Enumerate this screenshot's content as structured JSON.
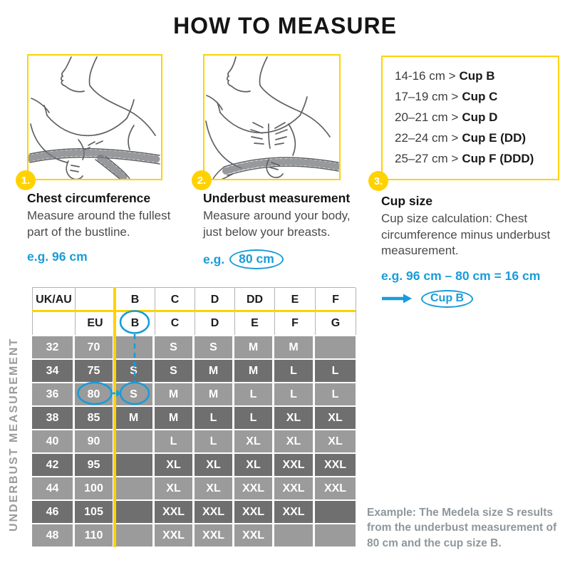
{
  "title": "HOW TO MEASURE",
  "colors": {
    "accent_yellow": "#FFD200",
    "accent_blue": "#189CD9",
    "row_light": "#9B9B9B",
    "row_dark": "#6F6F6F",
    "footnote_gray": "#8E979D"
  },
  "steps": [
    {
      "number": "1.",
      "heading": "Chest circumference",
      "body": "Measure around the fullest part of the bustline.",
      "example": "e.g. 96 cm"
    },
    {
      "number": "2.",
      "heading": "Underbust measurement",
      "body": "Measure around your body, just below your breasts.",
      "example_prefix": "e.g.",
      "example_circled": "80 cm"
    },
    {
      "number": "3.",
      "heading": "Cup size",
      "body": "Cup size calculation: Chest circumference minus underbust measurement.",
      "example": "e.g. 96 cm – 80 cm = 16 cm",
      "result_circled": "Cup B"
    }
  ],
  "cup_chart": {
    "lines": [
      {
        "range": "14-16 cm >",
        "cup": "Cup B"
      },
      {
        "range": "17–19 cm >",
        "cup": "Cup C"
      },
      {
        "range": "20–21 cm >",
        "cup": "Cup D"
      },
      {
        "range": "22–24 cm >",
        "cup": "Cup E (DD)"
      },
      {
        "range": "25–27 cm >",
        "cup": "Cup F (DDD)"
      }
    ]
  },
  "size_table": {
    "side_label": "UNDERBUST MEASUREMENT",
    "header_row1": [
      "UK/AU",
      "",
      "B",
      "C",
      "D",
      "DD",
      "E",
      "F"
    ],
    "header_row2": [
      "",
      "EU",
      "B",
      "C",
      "D",
      "E",
      "F",
      "G"
    ],
    "rows": [
      {
        "uk": "32",
        "eu": "70",
        "cells": [
          "",
          "S",
          "S",
          "M",
          "M",
          ""
        ]
      },
      {
        "uk": "34",
        "eu": "75",
        "cells": [
          "S",
          "S",
          "M",
          "M",
          "L",
          "L"
        ]
      },
      {
        "uk": "36",
        "eu": "80",
        "cells": [
          "S",
          "M",
          "M",
          "L",
          "L",
          "L"
        ]
      },
      {
        "uk": "38",
        "eu": "85",
        "cells": [
          "M",
          "M",
          "L",
          "L",
          "XL",
          "XL"
        ]
      },
      {
        "uk": "40",
        "eu": "90",
        "cells": [
          "",
          "L",
          "L",
          "XL",
          "XL",
          "XL"
        ]
      },
      {
        "uk": "42",
        "eu": "95",
        "cells": [
          "",
          "XL",
          "XL",
          "XL",
          "XXL",
          "XXL"
        ]
      },
      {
        "uk": "44",
        "eu": "100",
        "cells": [
          "",
          "XL",
          "XL",
          "XXL",
          "XXL",
          "XXL"
        ]
      },
      {
        "uk": "46",
        "eu": "105",
        "cells": [
          "",
          "XXL",
          "XXL",
          "XXL",
          "XXL",
          ""
        ]
      },
      {
        "uk": "48",
        "eu": "110",
        "cells": [
          "",
          "XXL",
          "XXL",
          "XXL",
          "",
          ""
        ]
      }
    ],
    "annotations": {
      "circled_header_cup": "B",
      "circled_underbust": "80",
      "circled_result_size": "S"
    }
  },
  "footnote": "Example: The Medela size S results from the underbust measurement of 80 cm and the cup size B."
}
